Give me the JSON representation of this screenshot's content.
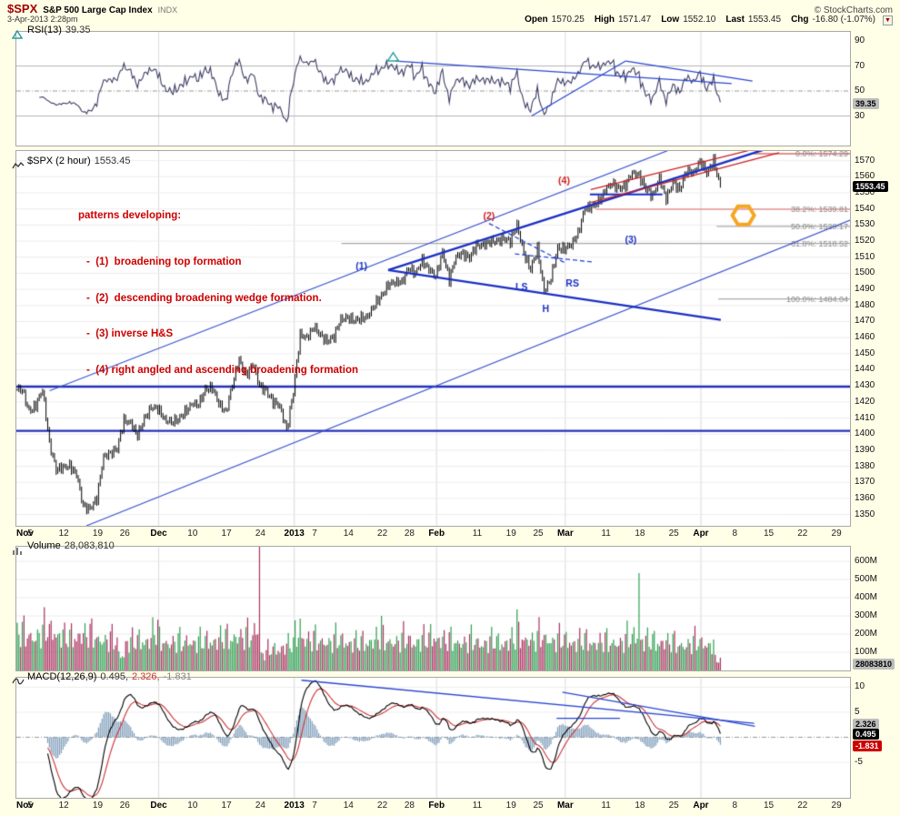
{
  "header": {
    "symbol": "$SPX",
    "title": "S&P 500 Large Cap Index",
    "exchange": "INDX",
    "datetime": "3-Apr-2013 2:28pm",
    "copyright": "© StockCharts.com",
    "quote": [
      {
        "label": "Open",
        "value": "1570.25"
      },
      {
        "label": "High",
        "value": "1571.47"
      },
      {
        "label": "Low",
        "value": "1552.10"
      },
      {
        "label": "Last",
        "value": "1553.45"
      },
      {
        "label": "Chg",
        "value": "-16.80 (-1.07%)"
      }
    ],
    "menu_arrow": "▼"
  },
  "panels": {
    "rsi": {
      "label": "RSI(13)",
      "value": "39.35",
      "badge": "39.35"
    },
    "price": {
      "label": "$SPX (2 hour)",
      "value": "1553.45",
      "badge": "1553.45"
    },
    "volume": {
      "label": "Volume",
      "value": "28,083,810",
      "badge": "28083810"
    },
    "macd": {
      "label": "MACD(12,26,9)",
      "values": [
        "0.495,",
        "2.326,",
        "-1.831"
      ],
      "badges": [
        "2.326",
        "0.495",
        "-1.831"
      ]
    }
  },
  "annotations": {
    "title": "patterns developing:",
    "items": [
      "-  (1)  broadening top formation",
      "-  (2)  descending broadening wedge formation.",
      "-  (3) inverse H&S",
      "-  (4) right angled and ascending broadening formation"
    ]
  },
  "chart_data": {
    "type": "ohlc-multi-panel",
    "title": "$SPX (2 hour)",
    "timeframe": "2-hour bars, Nov 2012 - Apr 2013",
    "domain_days": 123,
    "month_grid_days": [
      21,
      41,
      62,
      81,
      101
    ],
    "x_ticks": [
      {
        "label": "Nov",
        "day": 0,
        "bold": true
      },
      {
        "label": "5",
        "day": 2
      },
      {
        "label": "12",
        "day": 7
      },
      {
        "label": "19",
        "day": 12
      },
      {
        "label": "26",
        "day": 16
      },
      {
        "label": "Dec",
        "day": 21,
        "bold": true
      },
      {
        "label": "10",
        "day": 26
      },
      {
        "label": "17",
        "day": 31
      },
      {
        "label": "24",
        "day": 36
      },
      {
        "label": "2013",
        "day": 41,
        "bold": true
      },
      {
        "label": "7",
        "day": 44
      },
      {
        "label": "14",
        "day": 49
      },
      {
        "label": "22",
        "day": 54
      },
      {
        "label": "28",
        "day": 58
      },
      {
        "label": "Feb",
        "day": 62,
        "bold": true
      },
      {
        "label": "11",
        "day": 68
      },
      {
        "label": "19",
        "day": 73
      },
      {
        "label": "25",
        "day": 77
      },
      {
        "label": "Mar",
        "day": 81,
        "bold": true
      },
      {
        "label": "11",
        "day": 87
      },
      {
        "label": "18",
        "day": 92
      },
      {
        "label": "25",
        "day": 97
      },
      {
        "label": "Apr",
        "day": 101,
        "bold": true
      },
      {
        "label": "8",
        "day": 106
      },
      {
        "label": "15",
        "day": 111
      },
      {
        "label": "22",
        "day": 116
      },
      {
        "label": "29",
        "day": 121
      }
    ],
    "price": {
      "ylim": [
        1343,
        1576
      ],
      "last": 1553.45,
      "open": 1570.25,
      "high": 1571.47,
      "low": 1552.1,
      "chg": -16.8,
      "chg_pct": -1.07,
      "axis_ticks": [
        1570,
        1560,
        1550,
        1540,
        1530,
        1520,
        1510,
        1500,
        1490,
        1480,
        1470,
        1460,
        1450,
        1440,
        1430,
        1420,
        1410,
        1400,
        1390,
        1380,
        1370,
        1360,
        1350
      ],
      "daily_closes": [
        1427.6,
        1414.2,
        1417.3,
        1428.4,
        1394.5,
        1377.5,
        1379.9,
        1380.0,
        1374.5,
        1355.5,
        1353.3,
        1359.9,
        1386.9,
        1387.8,
        1391.0,
        1409.2,
        1406.3,
        1398.9,
        1409.9,
        1416.0,
        1416.2,
        1409.5,
        1407.1,
        1409.3,
        1413.9,
        1418.1,
        1418.6,
        1427.8,
        1428.5,
        1419.5,
        1413.6,
        1430.4,
        1446.8,
        1435.8,
        1443.7,
        1430.2,
        1426.7,
        1419.8,
        1418.1,
        1402.4,
        1426.2,
        1462.4,
        1459.4,
        1466.5,
        1461.9,
        1457.2,
        1461.0,
        1472.1,
        1472.1,
        1470.7,
        1472.3,
        1472.6,
        1480.9,
        1486.0,
        1492.6,
        1494.8,
        1494.8,
        1503.0,
        1500.2,
        1507.8,
        1502.0,
        1498.1,
        1513.2,
        1495.7,
        1511.3,
        1512.1,
        1509.4,
        1517.9,
        1517.0,
        1519.4,
        1520.3,
        1521.4,
        1519.8,
        1530.9,
        1512.0,
        1502.4,
        1515.6,
        1487.9,
        1496.9,
        1516.0,
        1514.7,
        1518.2,
        1525.2,
        1539.8,
        1541.5,
        1544.3,
        1551.2,
        1556.2,
        1552.5,
        1554.5,
        1563.2,
        1560.7,
        1552.1,
        1548.3,
        1558.7,
        1545.8,
        1556.9,
        1551.7,
        1563.8,
        1562.9,
        1569.2,
        1562.2,
        1570.3,
        1553.5
      ]
    },
    "rsi": {
      "period": 13,
      "last": 39.35,
      "ylim": [
        6.4,
        97.3
      ],
      "axis_ticks": [
        90,
        70,
        50,
        30
      ],
      "hlines": [
        70,
        30
      ],
      "mid": 50
    },
    "volume": {
      "last": 28083810,
      "ylim_m": [
        0,
        680
      ],
      "axis_ticks_m": [
        600,
        500,
        400,
        300,
        200,
        100
      ],
      "daily_base_m": [
        215,
        205,
        195,
        210,
        235,
        228,
        205,
        188,
        192,
        212,
        206,
        196,
        182,
        176,
        172,
        90,
        162,
        166,
        172,
        178,
        225,
        168,
        162,
        166,
        161,
        172,
        162,
        166,
        171,
        176,
        186,
        182,
        202,
        192,
        196,
        240,
        95,
        118,
        122,
        138,
        150,
        200,
        185,
        175,
        172,
        168,
        165,
        178,
        170,
        160,
        158,
        162,
        175,
        190,
        172,
        168,
        170,
        182,
        165,
        172,
        178,
        195,
        185,
        170,
        168,
        165,
        162,
        170,
        158,
        162,
        165,
        160,
        168,
        178,
        190,
        185,
        175,
        198,
        182,
        172,
        178,
        172,
        162,
        170,
        165,
        160,
        168,
        158,
        162,
        166,
        185,
        200,
        172,
        168,
        162,
        170,
        162,
        150,
        148,
        155,
        165,
        158,
        150,
        60
      ],
      "spikes": {
        "35": 700,
        "41": 285,
        "53": 300,
        "73": 335,
        "91": 535
      }
    },
    "macd": {
      "params": "12,26,9",
      "last_macd": 0.495,
      "last_signal": 2.326,
      "last_hist": -1.831,
      "ylim": [
        -12.1,
        11.9
      ],
      "axis_ticks": [
        10,
        5,
        -5
      ]
    },
    "overlays": {
      "price_hlines": [
        {
          "price": 1429.5,
          "w": 2.4,
          "color": "#2431b8"
        },
        {
          "price": 1402,
          "w": 2.4,
          "color": "#2431b8"
        }
      ],
      "price_trendlines": [
        {
          "x1": 0.084,
          "p1": 1343,
          "x2": 1.0,
          "p2": 1533,
          "w": 1.2,
          "color": "#3b56d0"
        },
        {
          "x1": 0.04,
          "p1": 1427,
          "x2": 0.8,
          "p2": 1580,
          "w": 1.2,
          "color": "#3b56d0"
        },
        {
          "x1": 0.446,
          "p1": 1502,
          "x2": 0.91,
          "p2": 1579,
          "w": 2.4,
          "color": "#1b2fc4"
        },
        {
          "x1": 0.446,
          "p1": 1502,
          "x2": 0.845,
          "p2": 1471,
          "w": 2.4,
          "color": "#1b2fc4"
        },
        {
          "x1": 0.688,
          "p1": 1549,
          "x2": 0.775,
          "p2": 1549,
          "w": 1.8,
          "color": "#1b2fc4"
        },
        {
          "x1": 0.567,
          "p1": 1531,
          "x2": 0.66,
          "p2": 1506,
          "w": 1.3,
          "color": "#2a46d0",
          "dash": true
        },
        {
          "x1": 0.598,
          "p1": 1512,
          "x2": 0.692,
          "p2": 1507,
          "w": 1.3,
          "color": "#2a46d0",
          "dash": true
        },
        {
          "x1": 0.689,
          "p1": 1552,
          "x2": 0.915,
          "p2": 1581,
          "w": 1.3,
          "color": "#cc2222"
        },
        {
          "x1": 0.689,
          "p1": 1544,
          "x2": 0.915,
          "p2": 1575,
          "w": 1.3,
          "color": "#cc2222"
        }
      ],
      "price_fib": [
        {
          "label": "0.0%: 1574.29",
          "price": 1574.29,
          "x1": 0.885,
          "color": "#cc2222"
        },
        {
          "label": "38.2%: 1539.81",
          "price": 1539.81,
          "x1": 0.695,
          "color": "#dd6666"
        },
        {
          "label": "50.0%: 1529.17",
          "price": 1529.17,
          "x1": 0.84,
          "color": "#aaaaaa"
        },
        {
          "label": "61.8%: 1518.52",
          "price": 1518.52,
          "x1": 0.39,
          "color": "#aaaaaa"
        },
        {
          "label": "100.0%: 1484.04",
          "price": 1484.04,
          "x1": 0.842,
          "color": "#aaaaaa"
        }
      ],
      "price_labels": [
        {
          "text": "(1)",
          "x": 0.414,
          "p": 1505,
          "color": "#1b2fc4"
        },
        {
          "text": "(2)",
          "x": 0.567,
          "p": 1536,
          "color": "#cc2222"
        },
        {
          "text": "(3)",
          "x": 0.737,
          "p": 1521,
          "color": "#1b2fc4"
        },
        {
          "text": "(4)",
          "x": 0.657,
          "p": 1558,
          "color": "#cc2222"
        },
        {
          "text": "LS",
          "x": 0.606,
          "p": 1492,
          "color": "#1b2fc4"
        },
        {
          "text": "H",
          "x": 0.635,
          "p": 1478,
          "color": "#1b2fc4"
        },
        {
          "text": "RS",
          "x": 0.667,
          "p": 1494,
          "color": "#1b2fc4"
        }
      ],
      "hex_marker": {
        "x": 0.872,
        "price": 1536,
        "color": "#f5a623"
      },
      "rsi_trendlines": [
        {
          "x1": 0.455,
          "v1": 74,
          "x2": 0.858,
          "v2": 56
        },
        {
          "x1": 0.618,
          "v1": 30,
          "x2": 0.731,
          "v2": 74
        },
        {
          "x1": 0.731,
          "v1": 74,
          "x2": 0.883,
          "v2": 58
        }
      ],
      "rsi_marker": {
        "x": 0.452,
        "v": 77
      },
      "macd_trendlines": [
        {
          "x1": 0.342,
          "v1": 11.4,
          "x2": 0.885,
          "v2": 2.8
        },
        {
          "x1": 0.655,
          "v1": 9.0,
          "x2": 0.886,
          "v2": 2.2
        },
        {
          "x1": 0.648,
          "v1": 3.8,
          "x2": 0.724,
          "v2": 3.8
        }
      ]
    },
    "colors": {
      "background": "#FFFFE8",
      "plot_bg": "#ffffff",
      "vol_up": "#2e9e4f",
      "vol_down": "#a8315e",
      "macd_hist": "#7f9db9",
      "macd_line": "#000000",
      "macd_signal": "#cc3333",
      "rsi_line": "#3c3c64",
      "trend_blue": "#2a46d0",
      "annotation_red": "#cc0000",
      "gold": "#f5a623"
    }
  }
}
